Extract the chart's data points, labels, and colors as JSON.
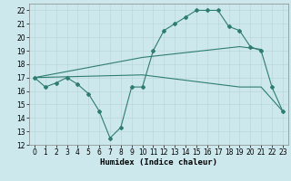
{
  "line1_x": [
    0,
    1,
    2,
    3,
    4,
    5,
    6,
    7,
    8,
    9,
    10,
    11,
    12,
    13,
    14,
    15,
    16,
    17,
    18,
    19,
    20,
    21,
    22,
    23
  ],
  "line1_y": [
    17,
    16.3,
    16.6,
    17,
    16.5,
    15.8,
    14.5,
    12.5,
    13.3,
    16.3,
    16.3,
    19,
    20.5,
    21,
    21.5,
    22,
    22,
    22,
    20.8,
    20.5,
    19.3,
    19,
    16.3,
    14.5
  ],
  "line2_x": [
    0,
    10,
    19,
    21
  ],
  "line2_y": [
    17,
    18.5,
    19.3,
    19.1
  ],
  "line3_x": [
    0,
    10,
    19,
    21,
    23
  ],
  "line3_y": [
    17,
    17.2,
    16.3,
    16.3,
    14.5
  ],
  "bg_color": "#cce8ec",
  "grid_color": "#b8d4d8",
  "line_color": "#2e7d6e",
  "xlabel": "Humidex (Indice chaleur)",
  "xlim": [
    -0.5,
    23.5
  ],
  "ylim": [
    12,
    22.5
  ],
  "yticks": [
    12,
    13,
    14,
    15,
    16,
    17,
    18,
    19,
    20,
    21,
    22
  ],
  "xticks": [
    0,
    1,
    2,
    3,
    4,
    5,
    6,
    7,
    8,
    9,
    10,
    11,
    12,
    13,
    14,
    15,
    16,
    17,
    18,
    19,
    20,
    21,
    22,
    23
  ],
  "tick_fontsize": 5.5,
  "xlabel_fontsize": 6.5,
  "marker": "D",
  "marker_size": 2.0,
  "line_width": 0.8
}
